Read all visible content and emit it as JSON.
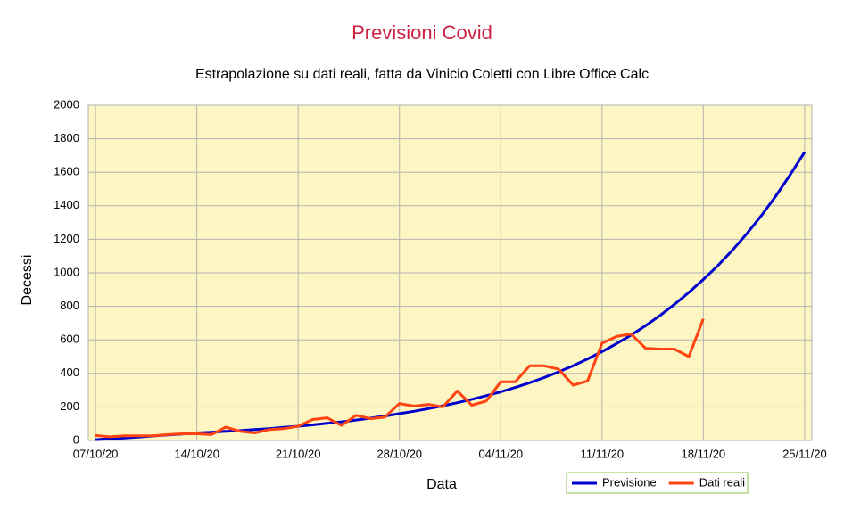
{
  "chart_data": {
    "type": "line",
    "title": "Previsioni Covid",
    "subtitle": "Estrapolazione su dati reali, fatta da Vinicio Coletti con Libre Office Calc",
    "x_label": "Data",
    "y_label": "Decessi",
    "categories": [
      "07/10/20",
      null,
      null,
      null,
      null,
      null,
      null,
      "14/10/20",
      null,
      null,
      null,
      null,
      null,
      null,
      "21/10/20",
      null,
      null,
      null,
      null,
      null,
      null,
      "28/10/20",
      null,
      null,
      null,
      null,
      null,
      null,
      "04/11/20",
      null,
      null,
      null,
      null,
      null,
      null,
      "11/11/20",
      null,
      null,
      null,
      null,
      null,
      null,
      "18/11/20",
      null,
      null,
      null,
      null,
      null,
      null,
      "25/11/20"
    ],
    "series": [
      {
        "name": "Previsione",
        "color": "#0000cc",
        "values": [
          5,
          10,
          15,
          21,
          27,
          33,
          39,
          45,
          49,
          54,
          59,
          65,
          71,
          78,
          85,
          93,
          102,
          111,
          122,
          133,
          146,
          160,
          174,
          190,
          207,
          225,
          245,
          267,
          290,
          316,
          344,
          375,
          409,
          446,
          486,
          530,
          577,
          628,
          684,
          745,
          811,
          883,
          960,
          1043,
          1134,
          1233,
          1340,
          1457,
          1585,
          1720
        ]
      },
      {
        "name": "Dati reali",
        "color": "#ff4411",
        "values": [
          30,
          22,
          28,
          28,
          28,
          35,
          40,
          40,
          35,
          80,
          55,
          45,
          65,
          70,
          85,
          125,
          135,
          90,
          150,
          130,
          140,
          220,
          205,
          215,
          200,
          295,
          210,
          235,
          350,
          350,
          445,
          445,
          425,
          330,
          355,
          580,
          620,
          635,
          550,
          545,
          545,
          500,
          725,
          null,
          null,
          null,
          null,
          null,
          null,
          null
        ]
      }
    ],
    "ylim": [
      0,
      2000
    ],
    "yticks": [
      0,
      200,
      400,
      600,
      800,
      1000,
      1200,
      1400,
      1600,
      1800,
      2000
    ],
    "grid": true,
    "legend": "bottom-right",
    "plot_background": "#fdf6c3"
  }
}
